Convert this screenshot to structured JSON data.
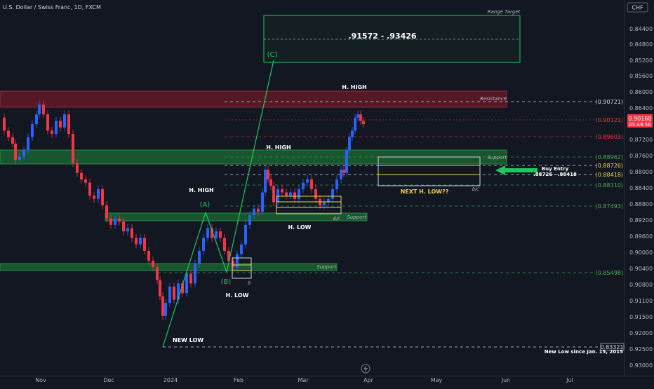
{
  "header": {
    "title": "U.S. Dollar / Swiss Franc, 1D, FXCM",
    "currency_badge": "CHF"
  },
  "colors": {
    "background": "#131722",
    "up": "#2962ff",
    "down": "#f23645",
    "green_zone": "#1f8a3b",
    "red_zone": "#8c1c2a",
    "wave": "#22c55e",
    "yellow": "#e8d44d",
    "text": "#d1d4dc",
    "muted": "#787b86"
  },
  "chart_data": {
    "type": "candlestick",
    "ylim": [
      0.8236,
      0.9392
    ],
    "yticks": [
      "0.82800",
      "0.83200",
      "0.83600",
      "0.84000",
      "0.84400",
      "0.84800",
      "0.85200",
      "0.85600",
      "0.86000",
      "0.86400",
      "0.86800",
      "0.87200",
      "0.87600",
      "0.88000",
      "0.88400",
      "0.88800",
      "0.89200",
      "0.89600",
      "0.90000",
      "0.90400",
      "0.90800",
      "0.91100",
      "0.91500",
      "0.92000",
      "0.92500",
      "0.93000"
    ],
    "xticks": [
      "Nov",
      "Dec",
      "2024",
      "Feb",
      "Mar",
      "Apr",
      "May",
      "Jun",
      "Jul"
    ],
    "last_price": "0.90160",
    "countdown": "05:49:56",
    "price_labels": {
      "p1": "(0.90721)",
      "p2": "(0.90121)",
      "p3": "(0.89603)",
      "p4": "(0.88962)",
      "p5": "(0.88726)",
      "p6": "(0.88418)",
      "p7": "(0.88110)",
      "p8": "(0.87493)",
      "p9": "(0.85498)",
      "p10": "0.83321"
    },
    "annotations": {
      "target_text": ".91572  -  .93426",
      "range_target": "Range Target",
      "wave_c": "(C)",
      "wave_a": "(A)",
      "wave_b": "(B)",
      "h_high_1": "H. HIGH",
      "h_high_2": "H. HIGH",
      "h_high_3": "H. HIGH",
      "h_low_1": "H. LOW",
      "h_low_2": "H. LOW",
      "new_low": "NEW LOW",
      "new_low_since": "New Low since Jan. 15, 2015",
      "resistance": "Resistance",
      "support_1": "Support",
      "support_2": "Support",
      "support_3": "Support",
      "bc_1": "B/C",
      "bc_2": "B/C",
      "b_small": "B",
      "buy_entry": "Buy Entry",
      "buy_range": ".88726 - .88418",
      "next_low": "NEXT H. LOW??"
    }
  }
}
